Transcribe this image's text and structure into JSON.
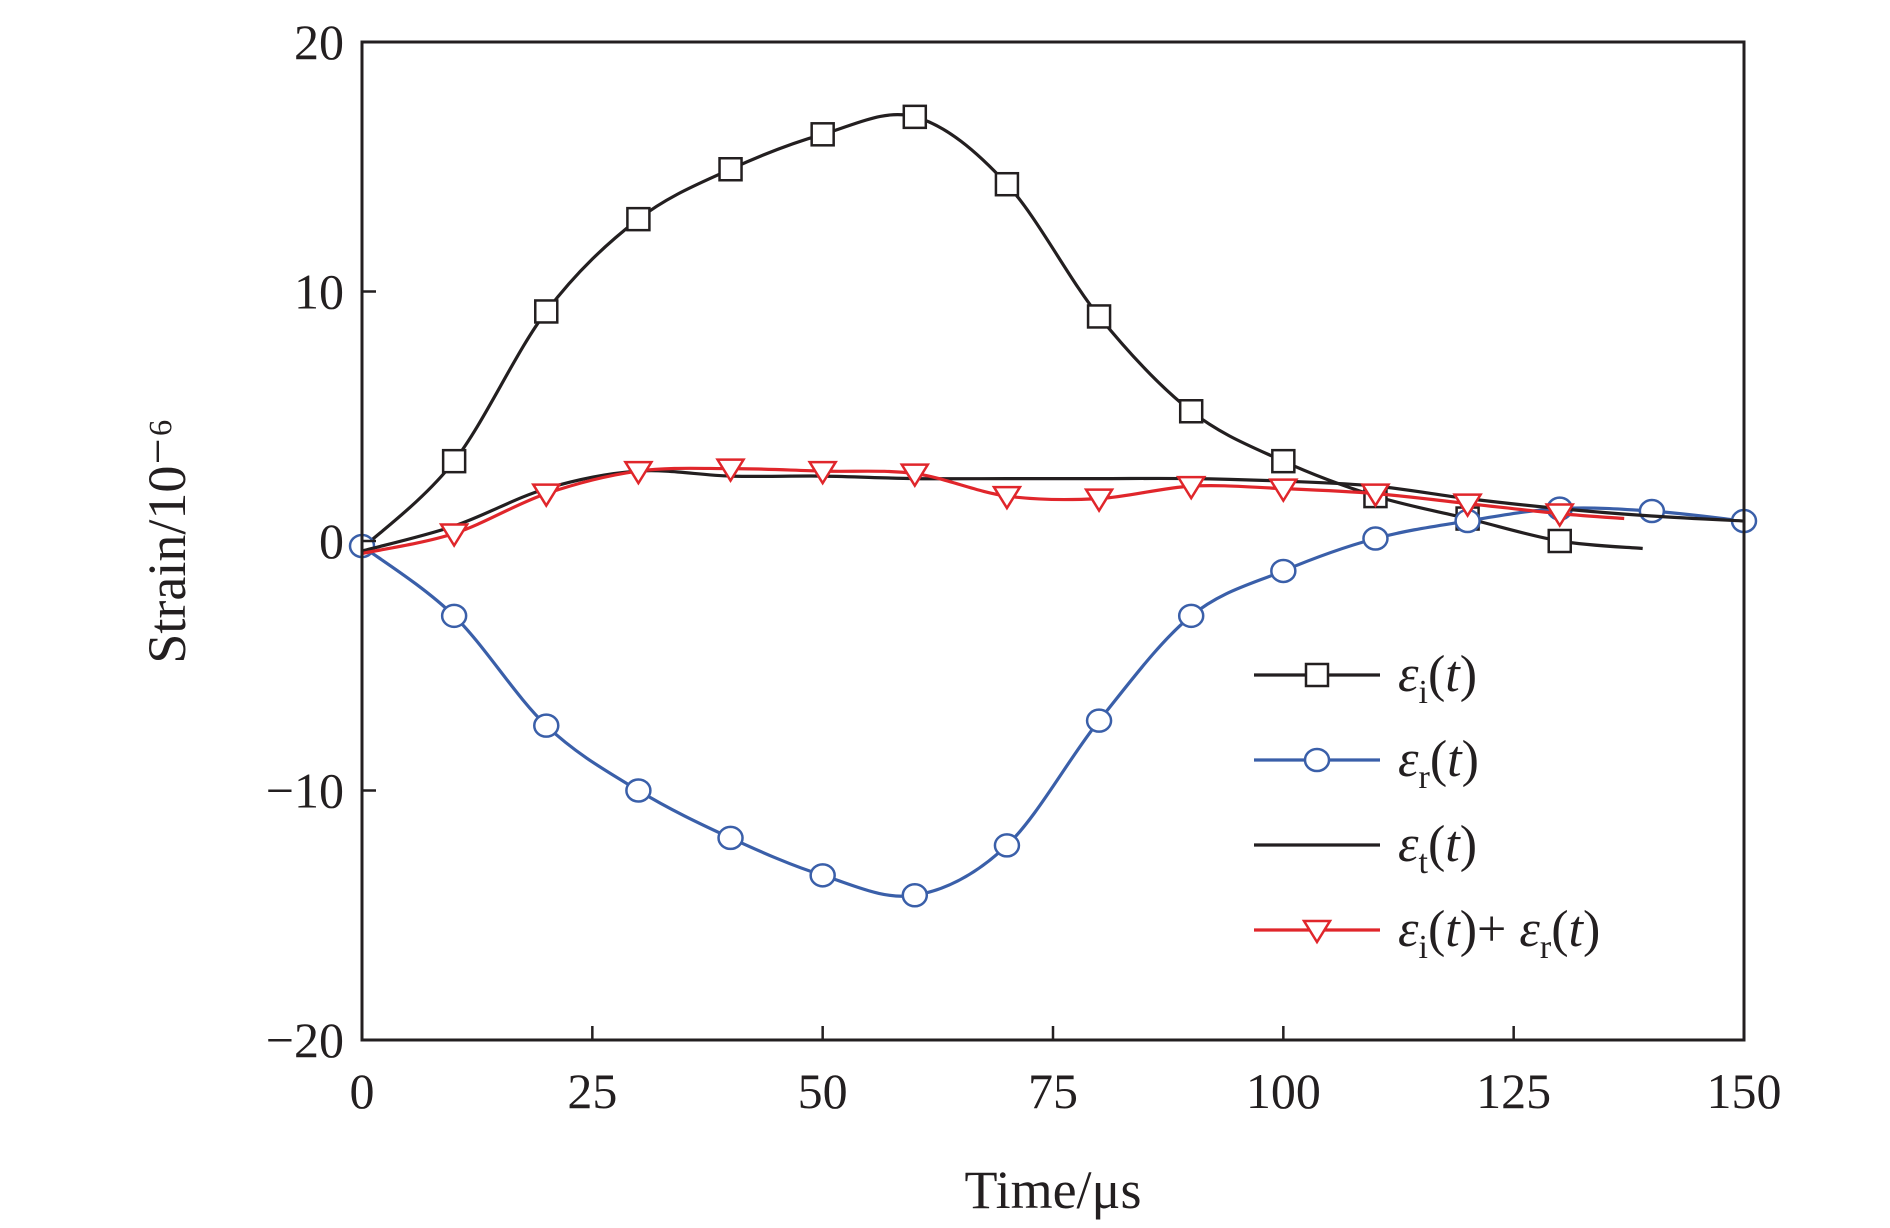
{
  "chart_data": {
    "type": "line",
    "xlabel": "Time/μs",
    "ylabel": "Strain/10⁻⁶",
    "xlim": [
      0,
      150
    ],
    "ylim": [
      -20,
      20
    ],
    "xticks": [
      "0",
      "25",
      "50",
      "75",
      "100",
      "125",
      "150"
    ],
    "yticks": [
      "−20",
      "−10",
      "0",
      "10",
      "20"
    ],
    "grid": false,
    "legend_position": "bottom-right",
    "series": [
      {
        "name": "εi(t)",
        "color": "#231f20",
        "marker": "square",
        "x": [
          0,
          10,
          20,
          30,
          40,
          50,
          60,
          70,
          80,
          90,
          100,
          110,
          120,
          130,
          139
        ],
        "y": [
          -0.3,
          3.2,
          9.2,
          12.9,
          14.9,
          16.3,
          17.0,
          14.3,
          9.0,
          5.2,
          3.2,
          1.8,
          0.9,
          0.0,
          -0.3
        ],
        "marker_x": [
          10,
          20,
          30,
          40,
          50,
          60,
          70,
          80,
          90,
          100,
          110,
          120,
          130
        ]
      },
      {
        "name": "εr(t)",
        "color": "#3a5fa9",
        "marker": "circle",
        "x": [
          0,
          10,
          20,
          30,
          40,
          50,
          60,
          70,
          80,
          90,
          100,
          110,
          120,
          130,
          140,
          150
        ],
        "y": [
          -0.2,
          -3.0,
          -7.4,
          -10.0,
          -11.9,
          -13.4,
          -14.2,
          -12.2,
          -7.2,
          -3.0,
          -1.2,
          0.1,
          0.8,
          1.3,
          1.2,
          0.8
        ],
        "marker_x": [
          0,
          10,
          20,
          30,
          40,
          50,
          60,
          70,
          80,
          90,
          100,
          110,
          120,
          130,
          140,
          150
        ]
      },
      {
        "name": "εt(t)",
        "color": "#231f20",
        "marker": "none",
        "x": [
          0,
          10,
          20,
          30,
          40,
          50,
          60,
          70,
          80,
          90,
          100,
          110,
          120,
          130,
          140,
          150
        ],
        "y": [
          -0.4,
          0.6,
          2.1,
          2.8,
          2.6,
          2.6,
          2.5,
          2.5,
          2.5,
          2.5,
          2.4,
          2.2,
          1.7,
          1.3,
          1.0,
          0.8
        ],
        "marker_x": []
      },
      {
        "name": "εi(t)+ εr(t)",
        "color": "#e0262b",
        "marker": "triangle-down",
        "x": [
          0,
          10,
          20,
          30,
          40,
          50,
          60,
          70,
          80,
          90,
          100,
          110,
          120,
          130,
          137
        ],
        "y": [
          -0.5,
          0.3,
          1.9,
          2.8,
          2.9,
          2.8,
          2.7,
          1.8,
          1.7,
          2.2,
          2.1,
          1.9,
          1.5,
          1.1,
          0.9
        ],
        "marker_x": [
          10,
          20,
          30,
          40,
          50,
          60,
          70,
          80,
          90,
          100,
          110,
          120,
          130
        ]
      }
    ],
    "legend": [
      {
        "sym": "ε",
        "sub": "i",
        "rest": "(t)"
      },
      {
        "sym": "ε",
        "sub": "r",
        "rest": "(t)"
      },
      {
        "sym": "ε",
        "sub": "t",
        "rest": "(t)"
      },
      {
        "sym": "ε",
        "sub": "i",
        "rest": "(t)+ ",
        "sym2": "ε",
        "sub2": "r",
        "rest2": "(t)"
      }
    ]
  }
}
